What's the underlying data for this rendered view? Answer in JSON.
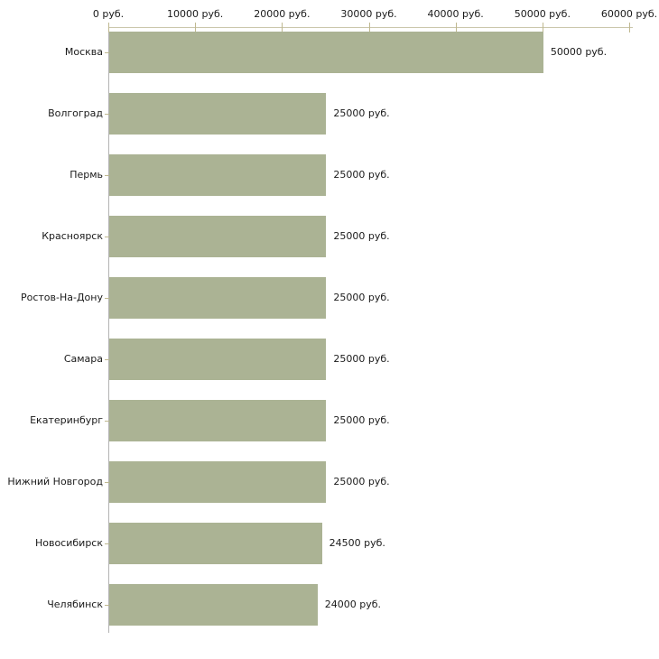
{
  "chart_data": {
    "type": "bar",
    "orientation": "horizontal",
    "title": "",
    "xlabel": "",
    "ylabel": "",
    "xlim": [
      0,
      60000
    ],
    "grid": false,
    "legend": false,
    "axis_position": "top",
    "x_ticks": [
      {
        "value": 0,
        "label": "0 руб."
      },
      {
        "value": 10000,
        "label": "10000 руб."
      },
      {
        "value": 20000,
        "label": "20000 руб."
      },
      {
        "value": 30000,
        "label": "30000 руб."
      },
      {
        "value": 40000,
        "label": "40000 руб."
      },
      {
        "value": 50000,
        "label": "50000 руб."
      },
      {
        "value": 60000,
        "label": "60000 руб."
      }
    ],
    "categories": [
      "Москва",
      "Волгоград",
      "Пермь",
      "Красноярск",
      "Ростов-На-Дону",
      "Самара",
      "Екатеринбург",
      "Нижний Новгород",
      "Новосибирск",
      "Челябинск"
    ],
    "values": [
      50000,
      25000,
      25000,
      25000,
      25000,
      25000,
      25000,
      25000,
      24500,
      24000
    ],
    "value_labels": [
      "50000 руб.",
      "25000 руб.",
      "25000 руб.",
      "25000 руб.",
      "25000 руб.",
      "25000 руб.",
      "25000 руб.",
      "25000 руб.",
      "24500 руб.",
      "24000 руб."
    ],
    "colors": {
      "bar": "#abb394",
      "x_axis_line": "#cbc7ac",
      "y_axis_line": "#b3b3b3",
      "tick": "#bfb890",
      "text": "#1a1a1a",
      "background": "#ffffff"
    }
  }
}
